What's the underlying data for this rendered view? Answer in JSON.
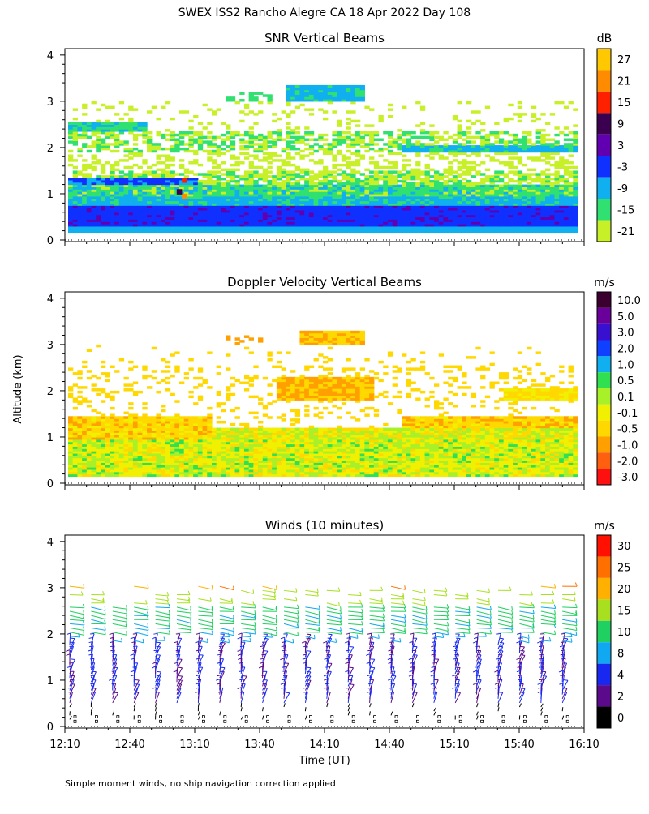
{
  "page": {
    "title": "SWEX ISS2 Rancho Alegre CA  18 Apr 2022 Day 108",
    "footnote": "Simple moment winds, no ship navigation correction applied"
  },
  "chart_data": [
    {
      "type": "heatmap",
      "title": "SNR Vertical Beams",
      "ylabel": "",
      "xlabel": "",
      "xlim": [
        "12:10",
        "16:10"
      ],
      "ylim": [
        0,
        4
      ],
      "y_ticks": [
        "0",
        "1",
        "2",
        "3",
        "4"
      ],
      "colorbar": {
        "unit": "dB",
        "labels": [
          "27",
          "21",
          "15",
          "9",
          "3",
          "-3",
          "-9",
          "-15",
          "-21"
        ],
        "colors": [
          "#ffc800",
          "#ff8c00",
          "#ff2000",
          "#3c0050",
          "#6000b0",
          "#1030ff",
          "#10b0f0",
          "#30e070",
          "#c8f028"
        ]
      }
    },
    {
      "type": "heatmap",
      "title": "Doppler Velocity Vertical Beams",
      "ylabel": "Altitude (km)",
      "xlabel": "",
      "xlim": [
        "12:10",
        "16:10"
      ],
      "ylim": [
        0,
        4
      ],
      "y_ticks": [
        "0",
        "1",
        "2",
        "3",
        "4"
      ],
      "colorbar": {
        "unit": "m/s",
        "labels": [
          "10.0",
          "5.0",
          "3.0",
          "2.0",
          "1.0",
          "0.5",
          "0.1",
          "-0.1",
          "-0.5",
          "-1.0",
          "-2.0",
          "-3.0"
        ],
        "colors": [
          "#3c0030",
          "#6a009a",
          "#3a10d0",
          "#1040ff",
          "#10b0f0",
          "#30e050",
          "#a8f028",
          "#f0f000",
          "#ffd800",
          "#ffa000",
          "#ff6010",
          "#ff1010"
        ]
      }
    },
    {
      "type": "wind_barbs",
      "title": "Winds (10 minutes)",
      "xlabel": "Time (UT)",
      "ylabel": "",
      "x_ticks": [
        "12:10",
        "12:40",
        "13:10",
        "13:40",
        "14:10",
        "14:40",
        "15:10",
        "15:40",
        "16:10"
      ],
      "ylim": [
        0,
        4
      ],
      "y_ticks": [
        "0",
        "1",
        "2",
        "3",
        "4"
      ],
      "colorbar": {
        "unit": "m/s",
        "labels": [
          "30",
          "25",
          "20",
          "15",
          "10",
          "8",
          "4",
          "2",
          "0"
        ],
        "colors": [
          "#ff1000",
          "#ff7000",
          "#ffb000",
          "#a8e020",
          "#20d060",
          "#10a8f0",
          "#1828f0",
          "#5a0a8a",
          "#000000"
        ]
      }
    }
  ]
}
